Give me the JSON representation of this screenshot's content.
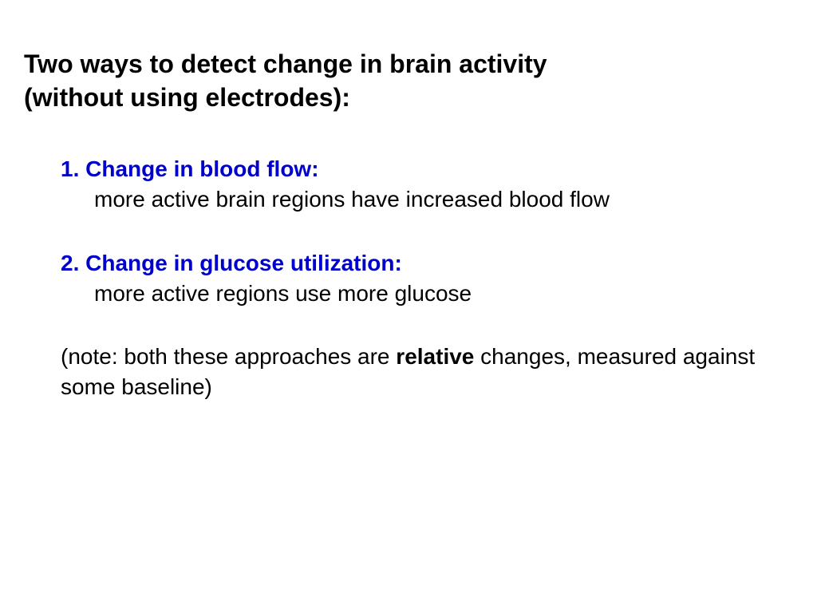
{
  "title_line1": "Two ways to detect change in brain activity",
  "title_line2": "(without using electrodes):",
  "point1": {
    "heading": "1. Change in blood flow:",
    "body": "more active brain regions have increased blood flow"
  },
  "point2": {
    "heading": "2. Change in glucose utilization:",
    "body": "more active regions use more glucose"
  },
  "note": {
    "prefix": "(note: both these approaches are ",
    "bold": "relative",
    "suffix": " changes, measured against some baseline)"
  },
  "colors": {
    "heading_blue": "#0000cc",
    "text_black": "#000000",
    "background": "#ffffff"
  },
  "typography": {
    "title_fontsize": 32,
    "body_fontsize": 28,
    "font_family": "Arial"
  }
}
